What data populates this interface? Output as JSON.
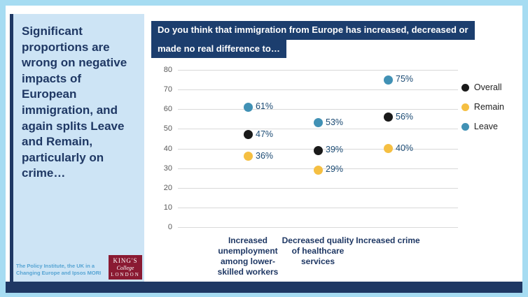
{
  "sidebar": {
    "headline": "Significant proportions are wrong on negative impacts of European immigration, and again splits Leave and Remain, particularly on crime…",
    "footnote": "The Policy Institute, the UK in a Changing Europe and Ipsos MORI",
    "logo": {
      "line1": "KING'S",
      "line2": "College",
      "line3": "LONDON"
    }
  },
  "question": {
    "line1": "Do you think that immigration from Europe has increased, decreased or",
    "line2": "made no real difference to…"
  },
  "colors": {
    "navy": "#1f3864",
    "frame": "#a6dcf2",
    "sidebar_bg": "#cde4f5",
    "logo_bg": "#8a1a32",
    "overall": "#1a1a1a",
    "remain": "#f5bf42",
    "leave": "#4191b5"
  },
  "chart_data": {
    "type": "scatter",
    "categories": [
      "Increased unemployment among lower-skilled workers",
      "Decreased quality of healthcare services",
      "Increased crime"
    ],
    "series": [
      {
        "name": "Overall",
        "color": "#1a1a1a",
        "values": [
          47,
          39,
          56
        ]
      },
      {
        "name": "Remain",
        "color": "#f5bf42",
        "values": [
          36,
          29,
          40
        ]
      },
      {
        "name": "Leave",
        "color": "#4191b5",
        "values": [
          61,
          53,
          75
        ]
      }
    ],
    "ylim": [
      0,
      80
    ],
    "ytick_step": 10,
    "grid": true,
    "legend_position": "right",
    "value_label_format": "{v}%"
  }
}
